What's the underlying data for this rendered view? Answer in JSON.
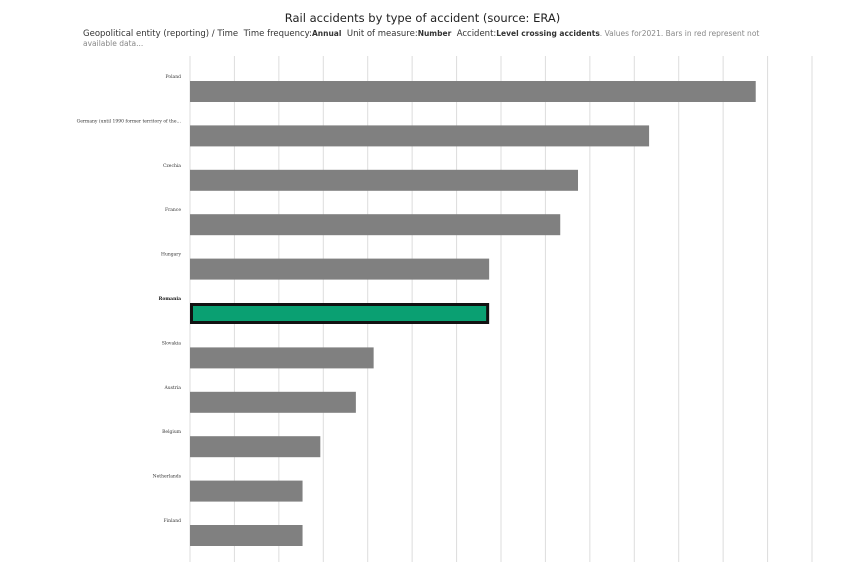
{
  "header": {
    "title": "Rail accidents by type of accident (source: ERA)",
    "dim1_label": "Geopolitical entity (reporting) / Time",
    "dim2_label": "Time frequency:",
    "dim2_value": "Annual",
    "dim3_label": "Unit of measure:",
    "dim3_value": "Number",
    "dim4_label": "Accident:",
    "dim4_value": "Level crossing accidents",
    "note": ". Values for2021. Bars in red represent not available data..."
  },
  "colors": {
    "bar": "#808080",
    "highlight": "#0aa072",
    "highlight_border": "#111111",
    "grid": "#dddddd"
  },
  "chart_data": {
    "type": "bar",
    "orientation": "horizontal",
    "categories": [
      "Poland",
      "Germany (until 1990 former territory of the…",
      "Czechia",
      "France",
      "Hungary",
      "Romania",
      "Slovakia",
      "Austria",
      "Belgium",
      "Netherlands",
      "Finland"
    ],
    "values": [
      191,
      155,
      131,
      125,
      101,
      101,
      62,
      56,
      44,
      38,
      38
    ],
    "highlighted": "Romania",
    "xlim": [
      0,
      210
    ],
    "grid": true,
    "gridlines": [
      0,
      15,
      30,
      45,
      60,
      75,
      90,
      105,
      120,
      135,
      150,
      165,
      180,
      195,
      210
    ]
  }
}
